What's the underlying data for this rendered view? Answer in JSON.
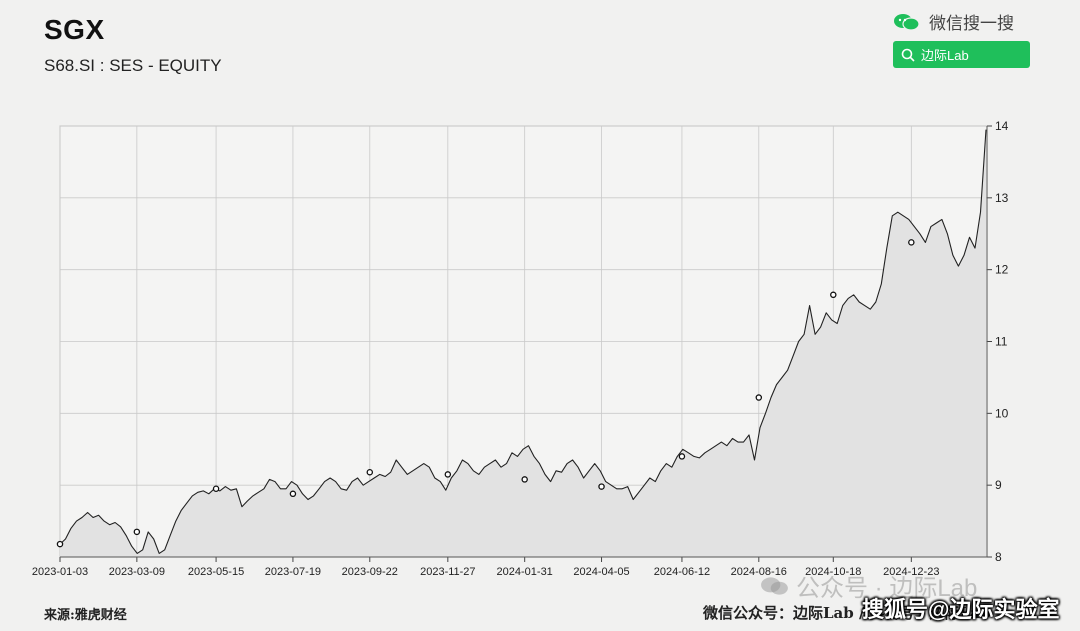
{
  "header": {
    "title": "SGX",
    "subtitle": "S68.SI : SES - EQUITY"
  },
  "wechat": {
    "search_text": "微信搜一搜",
    "button_label": "边际Lab",
    "brand_color": "#1fbf5b"
  },
  "footer": {
    "source": "来源:雅虎财经",
    "account": "微信公众号：边际Lab / 抖音号：边际Lab"
  },
  "watermarks": {
    "gongzhonghao": "公众号 · 边际Lab",
    "sohu": "搜狐号@边际实验室"
  },
  "chart_data": {
    "type": "area",
    "title": "SGX",
    "subtitle": "S68.SI : SES - EQUITY",
    "xlabel": "",
    "ylabel": "",
    "ylim": [
      8,
      14
    ],
    "yticks": [
      8,
      9,
      10,
      11,
      12,
      13,
      14
    ],
    "xticks": [
      "2023-01-03",
      "2023-03-09",
      "2023-05-15",
      "2023-07-19",
      "2023-09-22",
      "2023-11-27",
      "2024-01-31",
      "2024-04-05",
      "2024-06-12",
      "2024-08-16",
      "2024-10-18",
      "2024-12-23"
    ],
    "grid": true,
    "y_axis_side": "right",
    "line_color": "#222222",
    "fill_color": "#e2e2e2",
    "series": [
      {
        "values": [
          8.18,
          8.25,
          8.4,
          8.5,
          8.55,
          8.62,
          8.55,
          8.58,
          8.5,
          8.45,
          8.48,
          8.42,
          8.3,
          8.15,
          8.05,
          8.1,
          8.35,
          8.25,
          8.05,
          8.1,
          8.3,
          8.5,
          8.65,
          8.75,
          8.85,
          8.9,
          8.92,
          8.88,
          8.95,
          8.92,
          8.98,
          8.93,
          8.95,
          8.7,
          8.78,
          8.85,
          8.9,
          8.95,
          9.08,
          9.05,
          8.95,
          8.95,
          9.05,
          9.0,
          8.88,
          8.8,
          8.85,
          8.95,
          9.05,
          9.1,
          9.05,
          8.95,
          8.93,
          9.05,
          9.1,
          9.0,
          9.05,
          9.1,
          9.15,
          9.12,
          9.18,
          9.35,
          9.25,
          9.15,
          9.2,
          9.25,
          9.3,
          9.25,
          9.1,
          9.05,
          8.93,
          9.1,
          9.2,
          9.35,
          9.3,
          9.2,
          9.15,
          9.25,
          9.3,
          9.35,
          9.25,
          9.3,
          9.45,
          9.4,
          9.5,
          9.55,
          9.4,
          9.3,
          9.15,
          9.05,
          9.2,
          9.18,
          9.3,
          9.35,
          9.25,
          9.1,
          9.2,
          9.3,
          9.2,
          9.05,
          9.0,
          8.95,
          8.95,
          8.98,
          8.8,
          8.9,
          9.0,
          9.1,
          9.05,
          9.2,
          9.3,
          9.25,
          9.4,
          9.5,
          9.45,
          9.4,
          9.38,
          9.45,
          9.5,
          9.55,
          9.6,
          9.55,
          9.65,
          9.6,
          9.6,
          9.7,
          9.35,
          9.8,
          10.0,
          10.22,
          10.4,
          10.5,
          10.6,
          10.8,
          11.0,
          11.1,
          11.5,
          11.1,
          11.2,
          11.4,
          11.3,
          11.25,
          11.5,
          11.6,
          11.65,
          11.55,
          11.5,
          11.45,
          11.55,
          11.8,
          12.3,
          12.75,
          12.8,
          12.75,
          12.7,
          12.6,
          12.5,
          12.38,
          12.6,
          12.65,
          12.7,
          12.5,
          12.2,
          12.05,
          12.2,
          12.45,
          12.3,
          12.8,
          13.95
        ]
      }
    ],
    "markers": [
      {
        "x": "2023-01-03",
        "y": 8.18
      },
      {
        "x": "2023-03-09",
        "y": 8.35
      },
      {
        "x": "2023-05-15",
        "y": 8.95
      },
      {
        "x": "2023-07-19",
        "y": 8.88
      },
      {
        "x": "2023-09-22",
        "y": 9.18
      },
      {
        "x": "2023-11-27",
        "y": 9.15
      },
      {
        "x": "2024-01-31",
        "y": 9.08
      },
      {
        "x": "2024-04-05",
        "y": 8.98
      },
      {
        "x": "2024-06-12",
        "y": 9.4
      },
      {
        "x": "2024-08-16",
        "y": 10.22
      },
      {
        "x": "2024-10-18",
        "y": 11.65
      },
      {
        "x": "2024-12-23",
        "y": 12.38
      }
    ]
  }
}
